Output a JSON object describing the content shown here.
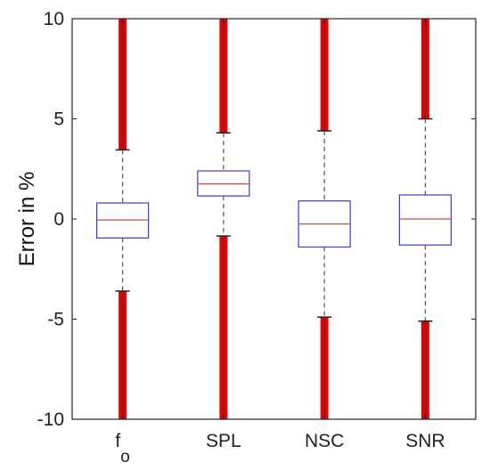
{
  "chart_data": {
    "type": "box",
    "ylabel": "Error in %",
    "ylim": [
      -10,
      10
    ],
    "yticks": [
      10,
      5,
      0,
      -5,
      -10
    ],
    "ytick_labels": [
      "10",
      "5",
      "0",
      "-5",
      "-10"
    ],
    "grid": false,
    "categories": [
      {
        "label": "f",
        "subscript": "o"
      },
      {
        "label": "SPL",
        "subscript": ""
      },
      {
        "label": "NSC",
        "subscript": ""
      },
      {
        "label": "SNR",
        "subscript": ""
      }
    ],
    "boxes": [
      {
        "whisker_low": -3.6,
        "q1": -0.95,
        "median": -0.05,
        "q3": 0.8,
        "whisker_high": 3.45,
        "outliers_low": [
          -3.6,
          -10
        ],
        "outliers_high": [
          3.45,
          10
        ]
      },
      {
        "whisker_low": -0.85,
        "q1": 1.15,
        "median": 1.75,
        "q3": 2.4,
        "whisker_high": 4.3,
        "outliers_low": [
          -0.85,
          -10
        ],
        "outliers_high": [
          4.3,
          10
        ]
      },
      {
        "whisker_low": -4.9,
        "q1": -1.4,
        "median": -0.25,
        "q3": 0.9,
        "whisker_high": 4.4,
        "outliers_low": [
          -4.9,
          -10
        ],
        "outliers_high": [
          4.4,
          10
        ]
      },
      {
        "whisker_low": -5.1,
        "q1": -1.3,
        "median": 0.0,
        "q3": 1.2,
        "whisker_high": 5.0,
        "outliers_low": [
          -5.1,
          -10
        ],
        "outliers_high": [
          5.0,
          10
        ]
      }
    ],
    "colors": {
      "box": "#3b3bd6",
      "median": "#c0504d",
      "whisker": "#555555",
      "outliers": "#ee0000",
      "outlier_core": "#8b1a1a",
      "axis": "#262626"
    }
  }
}
